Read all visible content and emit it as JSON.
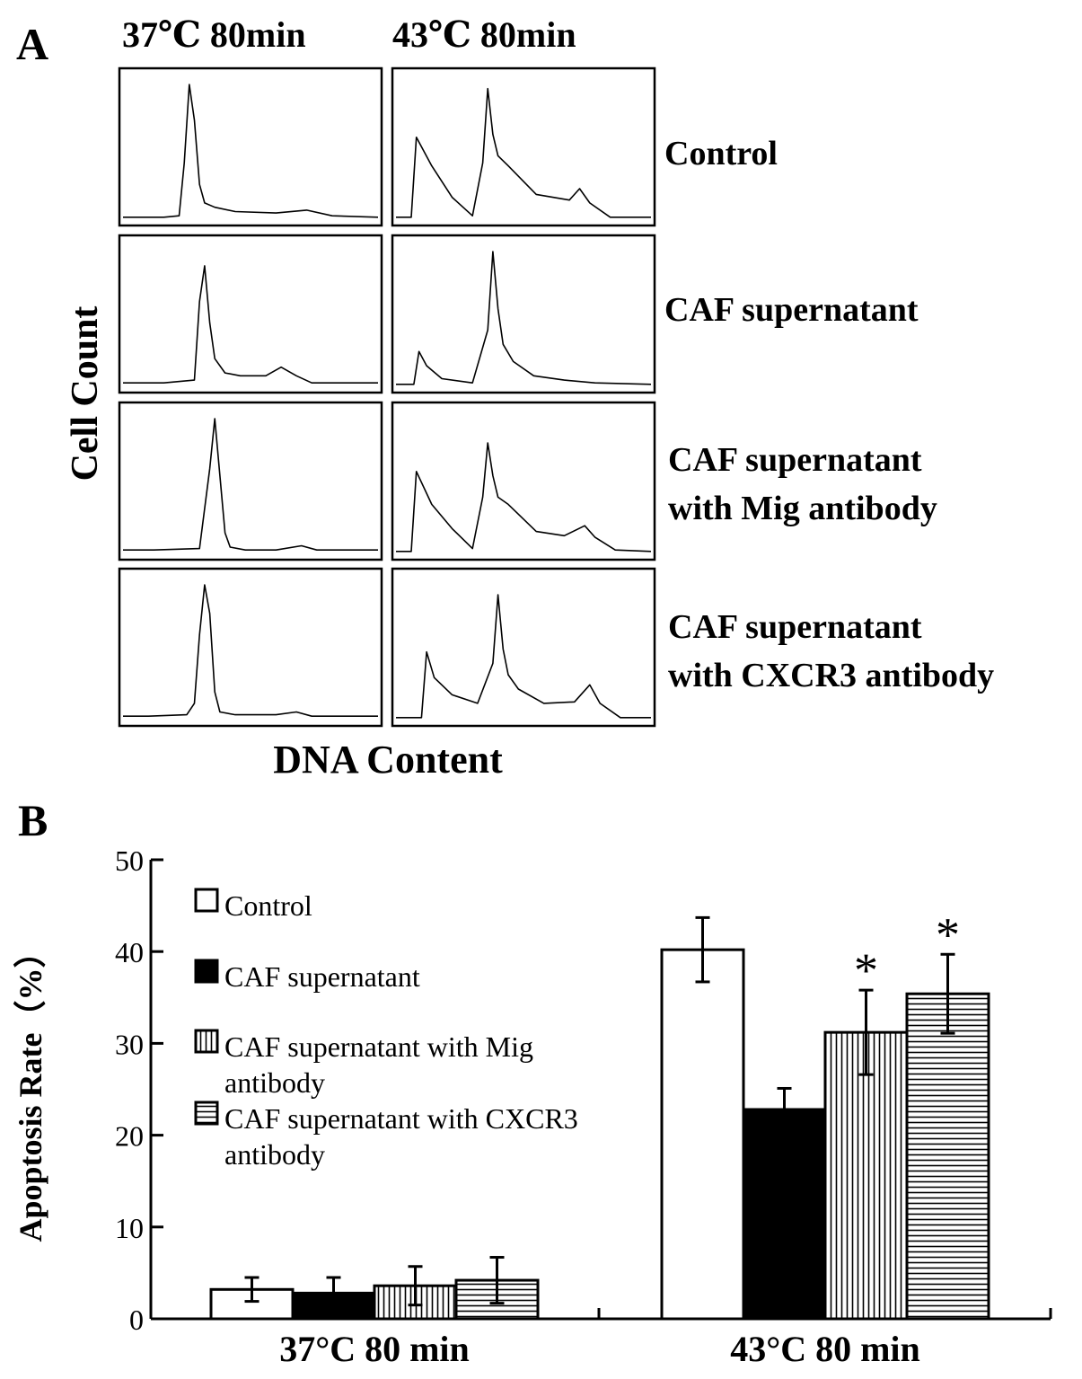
{
  "panel_a": {
    "letter": "A",
    "column_headers": [
      "37℃ 80min",
      "43℃ 80min"
    ],
    "ylabel": "Cell Count",
    "xlabel": "DNA Content",
    "row_labels": [
      [
        "Control"
      ],
      [
        "CAF supernatant"
      ],
      [
        "CAF supernatant",
        "with Mig antibody"
      ],
      [
        "CAF supernatant",
        "with CXCR3 antibody"
      ]
    ],
    "histograms": [
      {
        "condition": "37℃ 80min",
        "group": "Control",
        "x": [
          0,
          8,
          16,
          22,
          24,
          26,
          28,
          30,
          32,
          36,
          44,
          60,
          72,
          82,
          100
        ],
        "y": [
          2,
          2,
          2,
          3,
          40,
          95,
          70,
          25,
          12,
          9,
          6,
          5,
          7,
          3,
          2
        ]
      },
      {
        "condition": "43℃ 80min",
        "group": "Control",
        "x": [
          0,
          6,
          8,
          14,
          22,
          30,
          34,
          36,
          38,
          40,
          44,
          55,
          68,
          72,
          76,
          84,
          100
        ],
        "y": [
          2,
          2,
          58,
          38,
          16,
          3,
          40,
          92,
          60,
          45,
          38,
          18,
          14,
          22,
          12,
          2,
          2
        ]
      },
      {
        "condition": "37℃ 80min",
        "group": "CAF supernatant",
        "x": [
          0,
          8,
          16,
          28,
          30,
          32,
          34,
          36,
          40,
          46,
          56,
          62,
          68,
          74,
          100
        ],
        "y": [
          3,
          3,
          3,
          5,
          60,
          85,
          45,
          20,
          10,
          8,
          8,
          14,
          8,
          3,
          3
        ]
      },
      {
        "condition": "43℃ 80min",
        "group": "CAF supernatant",
        "x": [
          0,
          7,
          9,
          12,
          18,
          30,
          36,
          38,
          40,
          42,
          46,
          54,
          66,
          78,
          100
        ],
        "y": [
          2,
          2,
          25,
          15,
          6,
          3,
          40,
          95,
          55,
          30,
          18,
          8,
          5,
          3,
          2
        ]
      },
      {
        "condition": "37℃ 80min",
        "group": "CAF supernatant with Mig antibody",
        "x": [
          0,
          12,
          30,
          34,
          36,
          38,
          40,
          42,
          48,
          60,
          70,
          76,
          100
        ],
        "y": [
          3,
          3,
          4,
          60,
          95,
          55,
          15,
          5,
          3,
          3,
          6,
          3,
          3
        ]
      },
      {
        "condition": "43℃ 80min",
        "group": "CAF supernatant with Mig antibody",
        "x": [
          0,
          6,
          8,
          14,
          22,
          30,
          34,
          36,
          38,
          40,
          44,
          55,
          66,
          74,
          78,
          86,
          100
        ],
        "y": [
          2,
          2,
          58,
          35,
          18,
          4,
          40,
          78,
          55,
          40,
          35,
          16,
          13,
          20,
          12,
          3,
          2
        ]
      },
      {
        "condition": "37℃ 80min",
        "group": "CAF supernatant with CXCR3 antibody",
        "x": [
          0,
          10,
          25,
          28,
          30,
          32,
          34,
          36,
          38,
          44,
          60,
          68,
          74,
          100
        ],
        "y": [
          3,
          3,
          4,
          12,
          60,
          95,
          75,
          20,
          6,
          4,
          4,
          6,
          3,
          3
        ]
      },
      {
        "condition": "43℃ 80min",
        "group": "CAF supernatant with CXCR3 antibody",
        "x": [
          0,
          10,
          12,
          15,
          22,
          32,
          38,
          40,
          42,
          44,
          48,
          58,
          70,
          76,
          80,
          88,
          100
        ],
        "y": [
          2,
          2,
          48,
          30,
          18,
          12,
          40,
          88,
          50,
          32,
          22,
          12,
          13,
          25,
          12,
          2,
          2
        ]
      }
    ]
  },
  "chart_data": {
    "panel": "B",
    "type": "bar",
    "title": "",
    "xlabel": "",
    "ylabel": "Apoptosis Rate（%）",
    "ylim": [
      0,
      50
    ],
    "yticks": [
      0,
      10,
      20,
      30,
      40,
      50
    ],
    "categories": [
      "37°C  80  min",
      "43°C  80  min"
    ],
    "series": [
      {
        "name": "Control",
        "legend_lines": [
          "Control"
        ],
        "pattern": "white",
        "values": [
          3.2,
          40.2
        ],
        "errors": [
          1.3,
          3.5
        ],
        "significance": [
          "",
          ""
        ]
      },
      {
        "name": "CAF supernatant",
        "legend_lines": [
          "CAF supernatant"
        ],
        "pattern": "black",
        "values": [
          2.8,
          22.8
        ],
        "errors": [
          1.7,
          2.3
        ],
        "significance": [
          "",
          ""
        ]
      },
      {
        "name": "CAF supernatant with Mig antibody",
        "legend_lines": [
          "CAF supernatant with Mig",
          "antibody"
        ],
        "pattern": "vertical",
        "values": [
          3.6,
          31.2
        ],
        "errors": [
          2.1,
          4.6
        ],
        "significance": [
          "",
          "*"
        ]
      },
      {
        "name": "CAF supernatant with CXCR3 antibody",
        "legend_lines": [
          "CAF supernatant with CXCR3",
          "antibody"
        ],
        "pattern": "horizontal",
        "values": [
          4.2,
          35.4
        ],
        "errors": [
          2.5,
          4.3
        ],
        "significance": [
          "",
          "*"
        ]
      }
    ],
    "legend_position": "top-left",
    "grid": false
  }
}
